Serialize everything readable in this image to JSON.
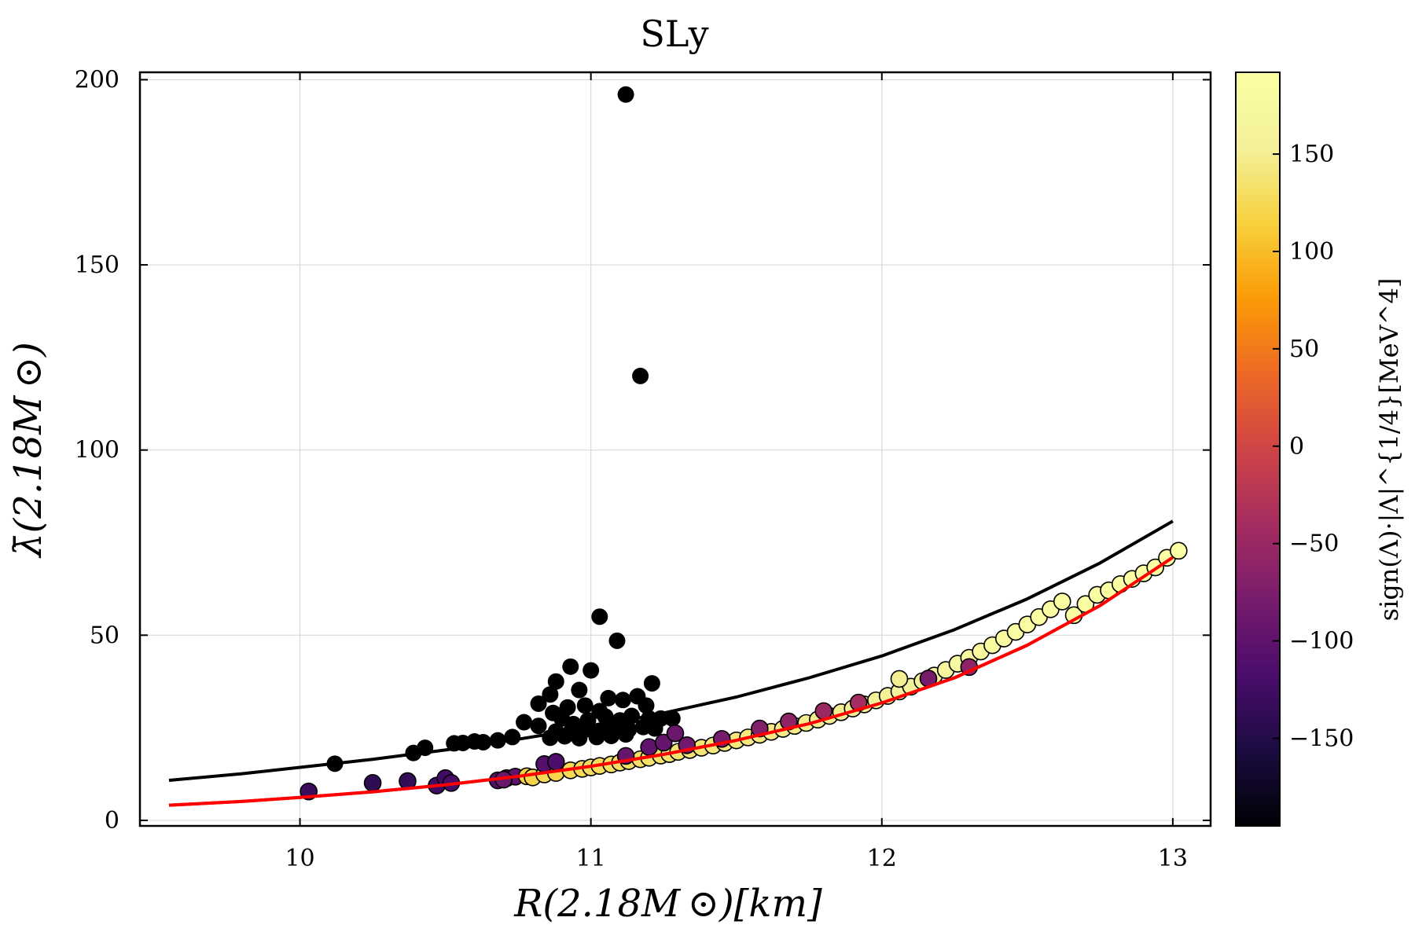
{
  "chart_data": {
    "type": "scatter",
    "title": "SLy",
    "xlabel": "R(2.18M ⊙)[km]",
    "ylabel": "λ̄(2.18M ⊙)",
    "xlim": [
      9.45,
      13.13
    ],
    "ylim": [
      -1.5,
      202
    ],
    "xticks": [
      10,
      11,
      12,
      13
    ],
    "yticks": [
      0,
      50,
      100,
      150,
      200
    ],
    "grid": true,
    "colorbar": {
      "label": "sign(Λ)·|Λ|^{1/4}[MeV^4]",
      "range": [
        -195,
        192
      ],
      "ticks": [
        -150,
        -100,
        -50,
        0,
        50,
        100,
        150
      ],
      "tick_labels": [
        "−150",
        "−100",
        "−50",
        "0",
        "50",
        "100",
        "150"
      ],
      "colormap": "inferno"
    },
    "series": [
      {
        "name": "black fit curve",
        "type": "line",
        "color": "#000000",
        "x": [
          9.55,
          9.8,
          10.0,
          10.25,
          10.5,
          10.75,
          11.0,
          11.25,
          11.5,
          11.75,
          12.0,
          12.25,
          12.5,
          12.75,
          13.0
        ],
        "y": [
          10.8,
          12.6,
          14.3,
          16.5,
          19.0,
          21.9,
          25.1,
          29.0,
          33.3,
          38.5,
          44.4,
          51.5,
          59.8,
          69.5,
          80.8
        ]
      },
      {
        "name": "red fit curve",
        "type": "line",
        "color": "#ff0000",
        "x": [
          9.55,
          9.8,
          10.0,
          10.25,
          10.5,
          10.75,
          11.0,
          11.25,
          11.5,
          11.75,
          12.0,
          12.25,
          12.5,
          12.75,
          13.0
        ],
        "y": [
          4.1,
          5.1,
          6.2,
          7.7,
          9.6,
          11.9,
          14.6,
          17.8,
          21.6,
          26.1,
          31.7,
          38.5,
          47.3,
          58.0,
          71.0
        ]
      },
      {
        "name": "black outlier points",
        "type": "scatter",
        "color": "#000000",
        "points": [
          [
            11.12,
            196
          ],
          [
            11.17,
            120
          ],
          [
            11.03,
            55
          ],
          [
            11.09,
            48.5
          ],
          [
            10.93,
            41.5
          ],
          [
            10.88,
            37.5
          ],
          [
            11.0,
            40.5
          ],
          [
            10.96,
            35.2
          ],
          [
            11.21,
            37
          ],
          [
            10.86,
            34
          ],
          [
            10.82,
            31.5
          ],
          [
            11.06,
            33
          ],
          [
            11.11,
            32.5
          ],
          [
            11.16,
            33.5
          ],
          [
            10.98,
            31
          ],
          [
            10.92,
            30.5
          ],
          [
            11.03,
            29.5
          ],
          [
            11.19,
            31
          ],
          [
            10.87,
            29
          ],
          [
            10.77,
            26.5
          ],
          [
            10.82,
            25.5
          ],
          [
            10.9,
            27.5
          ],
          [
            10.94,
            26
          ],
          [
            10.99,
            27
          ],
          [
            11.05,
            28
          ],
          [
            11.1,
            27
          ],
          [
            11.14,
            28.2
          ],
          [
            11.2,
            27.5
          ],
          [
            11.24,
            27.5
          ],
          [
            11.28,
            27.5
          ],
          [
            10.88,
            24
          ],
          [
            10.93,
            23.8
          ],
          [
            10.98,
            24.5
          ],
          [
            11.03,
            24.2
          ],
          [
            11.08,
            25
          ],
          [
            11.13,
            24.5
          ],
          [
            11.18,
            25.2
          ],
          [
            11.22,
            24.8
          ],
          [
            10.86,
            22.3
          ],
          [
            10.91,
            22.7
          ],
          [
            10.96,
            22.2
          ],
          [
            11.02,
            22.5
          ],
          [
            11.07,
            22.8
          ],
          [
            11.12,
            23.2
          ],
          [
            10.73,
            22.5
          ],
          [
            10.68,
            21.6
          ],
          [
            10.63,
            21.1
          ],
          [
            10.6,
            21.3
          ],
          [
            10.56,
            20.9
          ],
          [
            10.53,
            20.8
          ],
          [
            10.43,
            19.6
          ],
          [
            10.39,
            18.2
          ],
          [
            10.12,
            15.3
          ]
        ]
      },
      {
        "name": "colored points",
        "type": "scatter",
        "color_by": "colorbar",
        "points": [
          [
            10.03,
            7.8,
            -130
          ],
          [
            10.25,
            10.1,
            -140
          ],
          [
            10.37,
            10.6,
            -135
          ],
          [
            10.47,
            9.4,
            -125
          ],
          [
            10.5,
            11.4,
            -125
          ],
          [
            10.52,
            10.1,
            -120
          ],
          [
            10.68,
            10.8,
            -110
          ],
          [
            10.71,
            11.4,
            -105
          ],
          [
            10.74,
            11.8,
            -100
          ],
          [
            10.78,
            11.9,
            115
          ],
          [
            10.8,
            11.6,
            120
          ],
          [
            10.84,
            12.4,
            125
          ],
          [
            10.88,
            12.8,
            120
          ],
          [
            10.84,
            15.2,
            -110
          ],
          [
            10.88,
            15.8,
            -115
          ],
          [
            10.93,
            13.5,
            125
          ],
          [
            10.97,
            13.9,
            125
          ],
          [
            11.0,
            14.3,
            128
          ],
          [
            11.03,
            14.7,
            128
          ],
          [
            11.07,
            15.1,
            130
          ],
          [
            11.1,
            15.6,
            130
          ],
          [
            11.13,
            16.0,
            132
          ],
          [
            11.17,
            16.5,
            132
          ],
          [
            11.2,
            16.9,
            134
          ],
          [
            11.24,
            17.5,
            134
          ],
          [
            11.27,
            17.9,
            135
          ],
          [
            11.3,
            18.5,
            136
          ],
          [
            11.34,
            19.0,
            138
          ],
          [
            11.38,
            19.6,
            138
          ],
          [
            11.42,
            20.2,
            140
          ],
          [
            11.46,
            20.9,
            140
          ],
          [
            11.5,
            21.6,
            142
          ],
          [
            11.54,
            22.4,
            142
          ],
          [
            11.58,
            23.1,
            144
          ],
          [
            11.62,
            23.9,
            144
          ],
          [
            11.66,
            24.7,
            146
          ],
          [
            11.7,
            25.5,
            146
          ],
          [
            11.74,
            26.3,
            148
          ],
          [
            11.78,
            27.2,
            148
          ],
          [
            11.82,
            28.2,
            150
          ],
          [
            11.86,
            29.2,
            150
          ],
          [
            11.9,
            30.2,
            152
          ],
          [
            11.94,
            31.3,
            152
          ],
          [
            11.98,
            32.4,
            154
          ],
          [
            12.02,
            33.6,
            154
          ],
          [
            12.06,
            34.8,
            156
          ],
          [
            12.1,
            36.1,
            156
          ],
          [
            12.06,
            38.2,
            150
          ],
          [
            12.14,
            37.6,
            158
          ],
          [
            12.18,
            39.1,
            160
          ],
          [
            12.22,
            40.6,
            165
          ],
          [
            12.26,
            42.3,
            172
          ],
          [
            12.3,
            43.9,
            175
          ],
          [
            12.34,
            45.6,
            178
          ],
          [
            12.38,
            47.3,
            180
          ],
          [
            12.42,
            49.1,
            182
          ],
          [
            12.46,
            50.9,
            183
          ],
          [
            12.5,
            52.9,
            184
          ],
          [
            12.54,
            54.9,
            185
          ],
          [
            12.58,
            57.0,
            186
          ],
          [
            12.62,
            59.1,
            187
          ],
          [
            12.66,
            55.4,
            186
          ],
          [
            12.7,
            58.4,
            187
          ],
          [
            12.74,
            60.9,
            188
          ],
          [
            12.78,
            62.1,
            188
          ],
          [
            12.82,
            63.8,
            189
          ],
          [
            12.86,
            65.2,
            189
          ],
          [
            12.9,
            66.7,
            190
          ],
          [
            12.94,
            68.3,
            190
          ],
          [
            12.98,
            70.9,
            191
          ],
          [
            13.02,
            72.8,
            192
          ],
          [
            10.7,
            11.0,
            -90
          ],
          [
            11.12,
            17.4,
            -95
          ],
          [
            11.2,
            19.8,
            -100
          ],
          [
            11.25,
            21.0,
            -95
          ],
          [
            11.29,
            23.5,
            -90
          ],
          [
            11.33,
            20.3,
            -85
          ],
          [
            11.45,
            22.0,
            -80
          ],
          [
            11.58,
            24.8,
            -70
          ],
          [
            11.68,
            26.7,
            -60
          ],
          [
            11.8,
            29.5,
            -50
          ],
          [
            11.92,
            31.8,
            -40
          ],
          [
            12.16,
            38.3,
            -80
          ],
          [
            12.3,
            41.4,
            -60
          ]
        ]
      }
    ]
  }
}
